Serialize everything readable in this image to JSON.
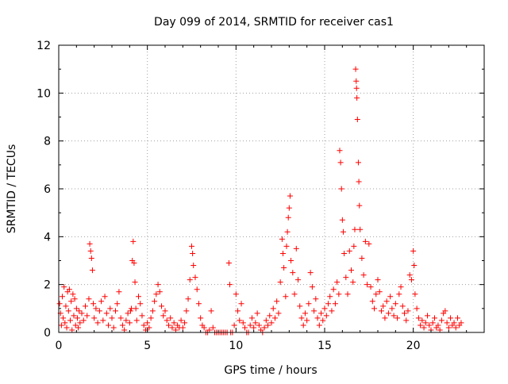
{
  "chart_data": {
    "type": "scatter",
    "title": "Day 099 of 2014, SRMTID for receiver cas1",
    "xlabel": "GPS time / hours",
    "ylabel": "SRMTID / TECUs",
    "xlim": [
      0,
      24
    ],
    "ylim": [
      0,
      12
    ],
    "xticks": [
      0,
      5,
      10,
      15,
      20
    ],
    "yticks": [
      0,
      2,
      4,
      6,
      8,
      10,
      12
    ],
    "grid": true,
    "marker": "+",
    "series": [
      {
        "name": "SRMTID",
        "color": "#ff0000",
        "points": [
          [
            0.05,
            1.2
          ],
          [
            0.1,
            0.8
          ],
          [
            0.15,
            0.3
          ],
          [
            0.2,
            1.5
          ],
          [
            0.25,
            0.6
          ],
          [
            0.3,
            1.9
          ],
          [
            0.35,
            0.4
          ],
          [
            0.4,
            1.1
          ],
          [
            0.45,
            0.2
          ],
          [
            0.5,
            1.7
          ],
          [
            0.55,
            0.9
          ],
          [
            0.6,
            1.8
          ],
          [
            0.65,
            0.5
          ],
          [
            0.7,
            1.3
          ],
          [
            0.75,
            0.1
          ],
          [
            0.8,
            1.6
          ],
          [
            0.85,
            0.7
          ],
          [
            0.9,
            1.4
          ],
          [
            0.95,
            0.3
          ],
          [
            1.0,
            1.0
          ],
          [
            1.05,
            0.6
          ],
          [
            1.1,
            0.2
          ],
          [
            1.15,
            0.9
          ],
          [
            1.2,
            0.4
          ],
          [
            1.3,
            0.8
          ],
          [
            1.4,
            0.5
          ],
          [
            1.5,
            1.1
          ],
          [
            1.6,
            0.7
          ],
          [
            1.7,
            1.4
          ],
          [
            1.75,
            3.7
          ],
          [
            1.8,
            3.4
          ],
          [
            1.85,
            3.1
          ],
          [
            1.9,
            2.6
          ],
          [
            1.95,
            1.2
          ],
          [
            2.0,
            0.6
          ],
          [
            2.1,
            1.0
          ],
          [
            2.2,
            0.4
          ],
          [
            2.3,
            0.9
          ],
          [
            2.4,
            1.3
          ],
          [
            2.5,
            0.5
          ],
          [
            2.6,
            1.5
          ],
          [
            2.7,
            0.8
          ],
          [
            2.8,
            0.3
          ],
          [
            2.9,
            1.0
          ],
          [
            3.0,
            0.6
          ],
          [
            3.1,
            0.2
          ],
          [
            3.2,
            0.9
          ],
          [
            3.3,
            1.2
          ],
          [
            3.4,
            1.7
          ],
          [
            3.5,
            0.6
          ],
          [
            3.6,
            0.3
          ],
          [
            3.7,
            0.1
          ],
          [
            3.8,
            0.5
          ],
          [
            3.9,
            0.8
          ],
          [
            4.0,
            0.4
          ],
          [
            4.05,
            0.9
          ],
          [
            4.1,
            1.0
          ],
          [
            4.15,
            3.0
          ],
          [
            4.2,
            3.8
          ],
          [
            4.25,
            2.9
          ],
          [
            4.3,
            2.1
          ],
          [
            4.35,
            1.0
          ],
          [
            4.4,
            0.5
          ],
          [
            4.5,
            1.5
          ],
          [
            4.6,
            1.2
          ],
          [
            4.7,
            0.7
          ],
          [
            4.8,
            0.3
          ],
          [
            4.9,
            0.1
          ],
          [
            5.0,
            0.4
          ],
          [
            5.1,
            0.2
          ],
          [
            5.2,
            0.6
          ],
          [
            5.3,
            0.9
          ],
          [
            5.4,
            1.3
          ],
          [
            5.5,
            1.6
          ],
          [
            5.6,
            2.0
          ],
          [
            5.7,
            1.7
          ],
          [
            5.8,
            1.1
          ],
          [
            5.9,
            0.7
          ],
          [
            6.0,
            0.9
          ],
          [
            6.1,
            0.5
          ],
          [
            6.2,
            0.3
          ],
          [
            6.3,
            0.6
          ],
          [
            6.4,
            0.2
          ],
          [
            6.5,
            0.4
          ],
          [
            6.6,
            0.1
          ],
          [
            6.7,
            0.3
          ],
          [
            6.8,
            0.2
          ],
          [
            6.9,
            0.5
          ],
          [
            7.0,
            0.2
          ],
          [
            7.1,
            0.4
          ],
          [
            7.2,
            0.9
          ],
          [
            7.3,
            1.4
          ],
          [
            7.4,
            2.2
          ],
          [
            7.5,
            3.6
          ],
          [
            7.55,
            3.3
          ],
          [
            7.6,
            2.8
          ],
          [
            7.7,
            2.3
          ],
          [
            7.8,
            1.8
          ],
          [
            7.9,
            1.2
          ],
          [
            8.0,
            0.6
          ],
          [
            8.1,
            0.3
          ],
          [
            8.2,
            0.2
          ],
          [
            8.3,
            0.0
          ],
          [
            8.4,
            0.0
          ],
          [
            8.5,
            0.1
          ],
          [
            8.6,
            0.9
          ],
          [
            8.7,
            0.2
          ],
          [
            8.8,
            0.0
          ],
          [
            8.9,
            0.0
          ],
          [
            9.0,
            0.0
          ],
          [
            9.1,
            0.0
          ],
          [
            9.2,
            0.0
          ],
          [
            9.3,
            0.0
          ],
          [
            9.4,
            0.0
          ],
          [
            9.5,
            0.0
          ],
          [
            9.6,
            2.9
          ],
          [
            9.65,
            2.0
          ],
          [
            9.7,
            0.0
          ],
          [
            9.8,
            0.0
          ],
          [
            9.9,
            0.3
          ],
          [
            10.0,
            1.6
          ],
          [
            10.1,
            0.9
          ],
          [
            10.2,
            0.5
          ],
          [
            10.3,
            1.2
          ],
          [
            10.4,
            0.4
          ],
          [
            10.5,
            0.2
          ],
          [
            10.6,
            0.0
          ],
          [
            10.7,
            0.0
          ],
          [
            10.8,
            0.3
          ],
          [
            10.9,
            0.6
          ],
          [
            11.0,
            0.2
          ],
          [
            11.1,
            0.4
          ],
          [
            11.2,
            0.8
          ],
          [
            11.3,
            0.3
          ],
          [
            11.4,
            0.1
          ],
          [
            11.5,
            0.0
          ],
          [
            11.6,
            0.2
          ],
          [
            11.7,
            0.5
          ],
          [
            11.8,
            0.3
          ],
          [
            11.9,
            0.7
          ],
          [
            12.0,
            0.4
          ],
          [
            12.1,
            1.0
          ],
          [
            12.2,
            0.6
          ],
          [
            12.3,
            1.3
          ],
          [
            12.4,
            0.8
          ],
          [
            12.5,
            2.1
          ],
          [
            12.6,
            3.9
          ],
          [
            12.65,
            3.3
          ],
          [
            12.7,
            2.7
          ],
          [
            12.8,
            1.5
          ],
          [
            12.85,
            3.6
          ],
          [
            12.9,
            4.2
          ],
          [
            12.95,
            4.8
          ],
          [
            13.0,
            5.2
          ],
          [
            13.05,
            5.7
          ],
          [
            13.1,
            3.0
          ],
          [
            13.2,
            2.5
          ],
          [
            13.3,
            1.6
          ],
          [
            13.4,
            3.5
          ],
          [
            13.5,
            2.2
          ],
          [
            13.6,
            1.1
          ],
          [
            13.7,
            0.6
          ],
          [
            13.8,
            0.3
          ],
          [
            13.9,
            0.8
          ],
          [
            14.0,
            0.5
          ],
          [
            14.1,
            1.2
          ],
          [
            14.2,
            2.5
          ],
          [
            14.3,
            1.9
          ],
          [
            14.4,
            0.9
          ],
          [
            14.5,
            1.4
          ],
          [
            14.6,
            0.6
          ],
          [
            14.7,
            0.3
          ],
          [
            14.8,
            0.8
          ],
          [
            14.9,
            0.5
          ],
          [
            15.0,
            1.0
          ],
          [
            15.1,
            0.7
          ],
          [
            15.2,
            1.2
          ],
          [
            15.3,
            1.5
          ],
          [
            15.4,
            0.9
          ],
          [
            15.5,
            1.8
          ],
          [
            15.6,
            1.2
          ],
          [
            15.7,
            2.1
          ],
          [
            15.8,
            1.6
          ],
          [
            15.85,
            7.6
          ],
          [
            15.9,
            7.1
          ],
          [
            15.95,
            6.0
          ],
          [
            16.0,
            4.7
          ],
          [
            16.05,
            4.2
          ],
          [
            16.1,
            3.3
          ],
          [
            16.2,
            2.3
          ],
          [
            16.3,
            1.6
          ],
          [
            16.4,
            3.4
          ],
          [
            16.5,
            2.6
          ],
          [
            16.6,
            2.1
          ],
          [
            16.65,
            3.6
          ],
          [
            16.7,
            4.3
          ],
          [
            16.75,
            11.0
          ],
          [
            16.78,
            10.5
          ],
          [
            16.8,
            10.2
          ],
          [
            16.82,
            9.8
          ],
          [
            16.85,
            8.9
          ],
          [
            16.9,
            7.1
          ],
          [
            16.93,
            6.3
          ],
          [
            16.96,
            5.3
          ],
          [
            17.0,
            4.3
          ],
          [
            17.1,
            3.1
          ],
          [
            17.2,
            2.4
          ],
          [
            17.3,
            3.8
          ],
          [
            17.4,
            2.0
          ],
          [
            17.5,
            3.7
          ],
          [
            17.6,
            1.9
          ],
          [
            17.7,
            1.3
          ],
          [
            17.8,
            1.0
          ],
          [
            17.9,
            1.6
          ],
          [
            18.0,
            2.2
          ],
          [
            18.1,
            1.7
          ],
          [
            18.2,
            0.9
          ],
          [
            18.3,
            1.1
          ],
          [
            18.4,
            0.6
          ],
          [
            18.5,
            1.3
          ],
          [
            18.6,
            0.8
          ],
          [
            18.7,
            1.5
          ],
          [
            18.8,
            1.0
          ],
          [
            18.9,
            0.7
          ],
          [
            19.0,
            1.2
          ],
          [
            19.1,
            0.6
          ],
          [
            19.2,
            1.6
          ],
          [
            19.3,
            1.9
          ],
          [
            19.4,
            1.1
          ],
          [
            19.5,
            0.8
          ],
          [
            19.6,
            0.5
          ],
          [
            19.7,
            0.9
          ],
          [
            19.8,
            2.4
          ],
          [
            19.9,
            2.2
          ],
          [
            20.0,
            3.4
          ],
          [
            20.05,
            2.8
          ],
          [
            20.1,
            1.6
          ],
          [
            20.2,
            1.0
          ],
          [
            20.3,
            0.6
          ],
          [
            20.4,
            0.3
          ],
          [
            20.5,
            0.5
          ],
          [
            20.6,
            0.2
          ],
          [
            20.7,
            0.4
          ],
          [
            20.8,
            0.7
          ],
          [
            20.9,
            0.3
          ],
          [
            21.0,
            0.1
          ],
          [
            21.1,
            0.4
          ],
          [
            21.2,
            0.6
          ],
          [
            21.3,
            0.2
          ],
          [
            21.4,
            0.3
          ],
          [
            21.5,
            0.1
          ],
          [
            21.6,
            0.5
          ],
          [
            21.7,
            0.8
          ],
          [
            21.8,
            0.9
          ],
          [
            21.9,
            0.4
          ],
          [
            22.0,
            0.2
          ],
          [
            22.1,
            0.6
          ],
          [
            22.2,
            0.3
          ],
          [
            22.3,
            0.4
          ],
          [
            22.4,
            0.2
          ],
          [
            22.5,
            0.6
          ],
          [
            22.6,
            0.3
          ],
          [
            22.7,
            0.4
          ]
        ]
      }
    ]
  }
}
